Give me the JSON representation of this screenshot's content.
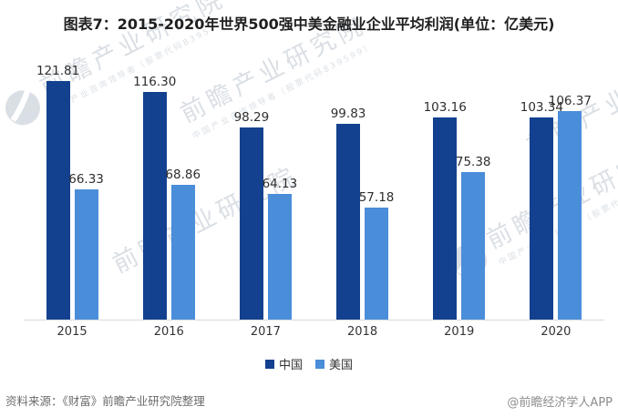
{
  "title": "图表7：2015-2020年世界500强中美金融业企业平均利润(单位：亿美元)",
  "chart_data": {
    "type": "bar",
    "categories": [
      "2015",
      "2016",
      "2017",
      "2018",
      "2019",
      "2020"
    ],
    "series": [
      {
        "id": "china",
        "name": "中国",
        "color": "#13418f",
        "values": [
          "121.81",
          "116.30",
          "98.29",
          "99.83",
          "103.16",
          "103.34"
        ]
      },
      {
        "id": "usa",
        "name": "美国",
        "color": "#4a8dd9",
        "values": [
          "66.33",
          "68.86",
          "64.13",
          "57.18",
          "75.38",
          "106.37"
        ]
      }
    ],
    "ylim": [
      0,
      130
    ],
    "grid": false,
    "y_axis_shown": false,
    "value_labels": true,
    "legend_position": "bottom",
    "axis_line_color": "#d9d9d9"
  },
  "footer": {
    "source": "资料来源：《财富》前瞻产业研究院整理",
    "credit": "@前瞻经济学人APP"
  },
  "watermark": {
    "big": "前瞻产业研究院",
    "small": "中国产业咨询领导者（股票代码839599）"
  }
}
